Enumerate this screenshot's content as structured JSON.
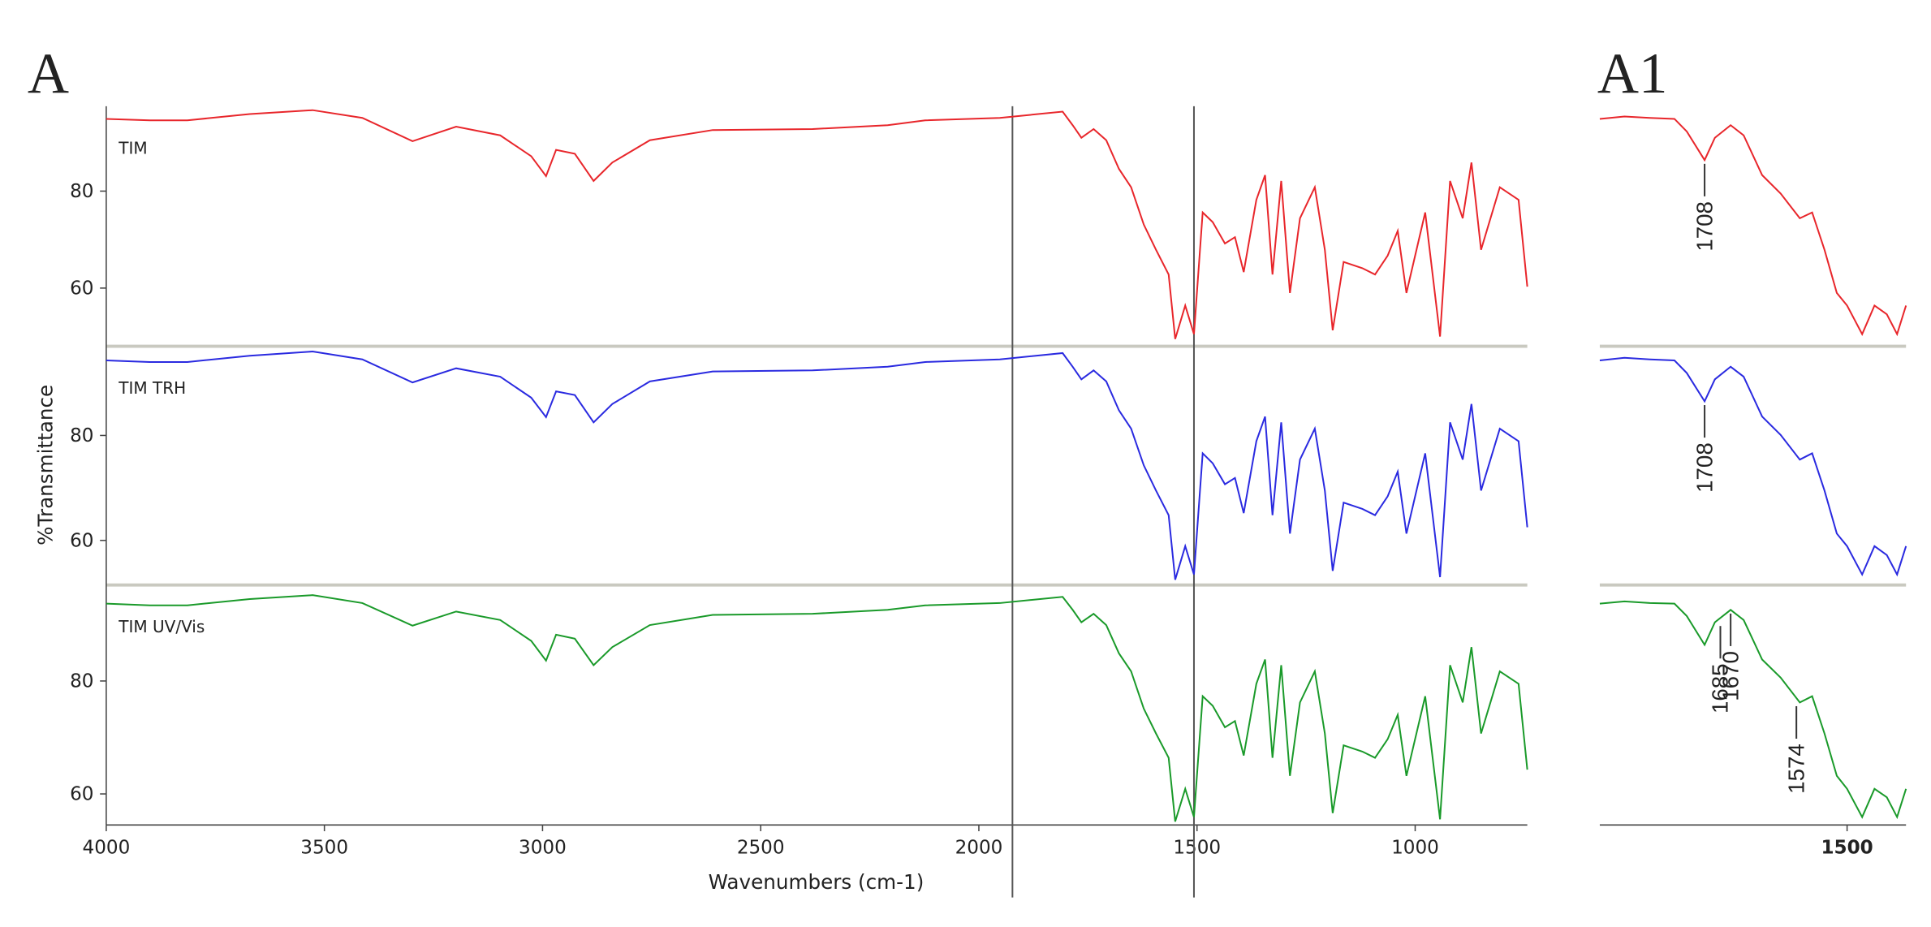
{
  "chart_data": [
    {
      "type": "line",
      "title": "A",
      "x_label": "Wavenumbers (cm-1)",
      "y_label": "%Transmittance",
      "xlim": [
        4000,
        743
      ],
      "xticks": [
        4000,
        3500,
        3000,
        2500,
        2000,
        1500,
        1000
      ],
      "vlines": [
        1923,
        1507
      ],
      "x": [
        4000,
        3900,
        3814,
        3671,
        3527,
        3413,
        3298,
        3198,
        3097,
        3026,
        2992,
        2969,
        2926,
        2883,
        2840,
        2754,
        2610,
        2381,
        2209,
        2123,
        1952,
        1808,
        1785,
        1765,
        1737,
        1708,
        1679,
        1651,
        1622,
        1594,
        1565,
        1550,
        1527,
        1507,
        1487,
        1464,
        1436,
        1413,
        1393,
        1364,
        1344,
        1327,
        1307,
        1287,
        1264,
        1230,
        1207,
        1189,
        1164,
        1121,
        1092,
        1063,
        1040,
        1020,
        977,
        943,
        920,
        891,
        871,
        849,
        806,
        763,
        743
      ],
      "panels": [
        {
          "name": "TIM",
          "color": "#e8262b",
          "ylim": [
            48,
            97.5
          ],
          "yticks": [
            60,
            80
          ],
          "values": [
            94.9,
            94.6,
            94.6,
            95.9,
            96.7,
            95.1,
            90.3,
            93.3,
            91.5,
            87.2,
            83.1,
            88.5,
            87.7,
            82.1,
            85.9,
            90.5,
            92.6,
            92.8,
            93.6,
            94.6,
            95.1,
            96.4,
            93.6,
            91.0,
            92.8,
            90.5,
            84.6,
            80.8,
            73.1,
            67.9,
            62.8,
            49.5,
            56.4,
            50.5,
            75.6,
            73.6,
            69.2,
            70.5,
            63.3,
            78.2,
            83.3,
            62.8,
            82.1,
            59.0,
            74.4,
            80.8,
            67.9,
            51.3,
            65.4,
            64.1,
            62.8,
            66.7,
            71.8,
            59.0,
            75.6,
            50.0,
            82.1,
            74.4,
            85.9,
            67.9,
            80.8,
            78.2,
            60.3
          ]
        },
        {
          "name": "TIM TRH",
          "color": "#2a2ae0",
          "ylim": [
            51.5,
            97
          ],
          "yticks": [
            60,
            80
          ],
          "values": [
            94.3,
            94.0,
            94.0,
            95.2,
            96.0,
            94.5,
            90.1,
            92.8,
            91.2,
            87.2,
            83.5,
            88.4,
            87.7,
            82.5,
            86.0,
            90.3,
            92.2,
            92.4,
            93.1,
            94.0,
            94.5,
            95.7,
            93.1,
            90.7,
            92.4,
            90.3,
            84.8,
            81.3,
            74.3,
            69.5,
            64.8,
            52.5,
            58.9,
            53.5,
            76.6,
            74.7,
            70.7,
            71.9,
            65.2,
            78.9,
            83.6,
            64.8,
            82.5,
            61.3,
            75.4,
            81.3,
            69.5,
            54.2,
            67.2,
            66.0,
            64.8,
            68.4,
            73.1,
            61.3,
            76.6,
            53.0,
            82.5,
            75.4,
            86.0,
            69.5,
            81.3,
            78.9,
            62.5
          ]
        },
        {
          "name": "TIM UV/Vis",
          "color": "#1a9a2a",
          "ylim": [
            54.5,
            97
          ],
          "yticks": [
            60,
            80
          ],
          "values": [
            93.7,
            93.4,
            93.4,
            94.5,
            95.2,
            93.8,
            89.8,
            92.3,
            90.8,
            87.1,
            83.6,
            88.2,
            87.5,
            82.8,
            86.0,
            89.9,
            91.7,
            91.9,
            92.6,
            93.4,
            93.8,
            94.9,
            92.6,
            90.4,
            91.9,
            89.9,
            84.9,
            81.7,
            75.1,
            70.7,
            66.4,
            55.1,
            60.9,
            55.9,
            77.3,
            75.6,
            71.8,
            72.9,
            66.8,
            79.5,
            83.8,
            66.4,
            82.8,
            63.2,
            76.2,
            81.7,
            70.7,
            56.6,
            68.6,
            67.5,
            66.4,
            69.7,
            74.0,
            63.2,
            77.3,
            55.5,
            82.8,
            76.2,
            86.0,
            70.7,
            81.7,
            79.5,
            64.3
          ]
        }
      ]
    },
    {
      "type": "line",
      "title": "A1",
      "xlim": [
        1861,
        1414
      ],
      "xticks": [
        1500
      ],
      "x": [
        1861,
        1825,
        1788,
        1752,
        1734,
        1708,
        1693,
        1670,
        1651,
        1624,
        1597,
        1569,
        1551,
        1533,
        1515,
        1500,
        1478,
        1460,
        1442,
        1427,
        1414
      ],
      "panels": [
        {
          "color": "#e8262b",
          "ylim": [
            48,
            97.5
          ],
          "annotations": [
            1708
          ],
          "values": [
            94.9,
            95.4,
            95.1,
            94.9,
            92.3,
            86.4,
            91.0,
            93.6,
            91.5,
            83.3,
            79.5,
            74.4,
            75.6,
            67.9,
            59.0,
            56.4,
            50.5,
            56.4,
            54.6,
            50.5,
            56.4
          ]
        },
        {
          "color": "#2a2ae0",
          "ylim": [
            51.5,
            97
          ],
          "annotations": [
            1708
          ],
          "values": [
            94.3,
            94.8,
            94.5,
            94.3,
            91.9,
            86.5,
            90.7,
            93.1,
            91.2,
            83.6,
            80.1,
            75.4,
            76.6,
            69.5,
            61.3,
            58.9,
            53.5,
            58.9,
            57.2,
            53.5,
            58.9
          ]
        },
        {
          "color": "#1a9a2a",
          "ylim": [
            54.5,
            97
          ],
          "annotations": [
            1685,
            1670,
            1574
          ],
          "values": [
            93.7,
            94.1,
            93.8,
            93.7,
            91.5,
            86.4,
            90.4,
            92.6,
            90.8,
            83.8,
            80.6,
            76.2,
            77.3,
            70.7,
            63.2,
            60.9,
            55.9,
            60.9,
            59.4,
            55.9,
            60.9
          ]
        }
      ]
    }
  ]
}
